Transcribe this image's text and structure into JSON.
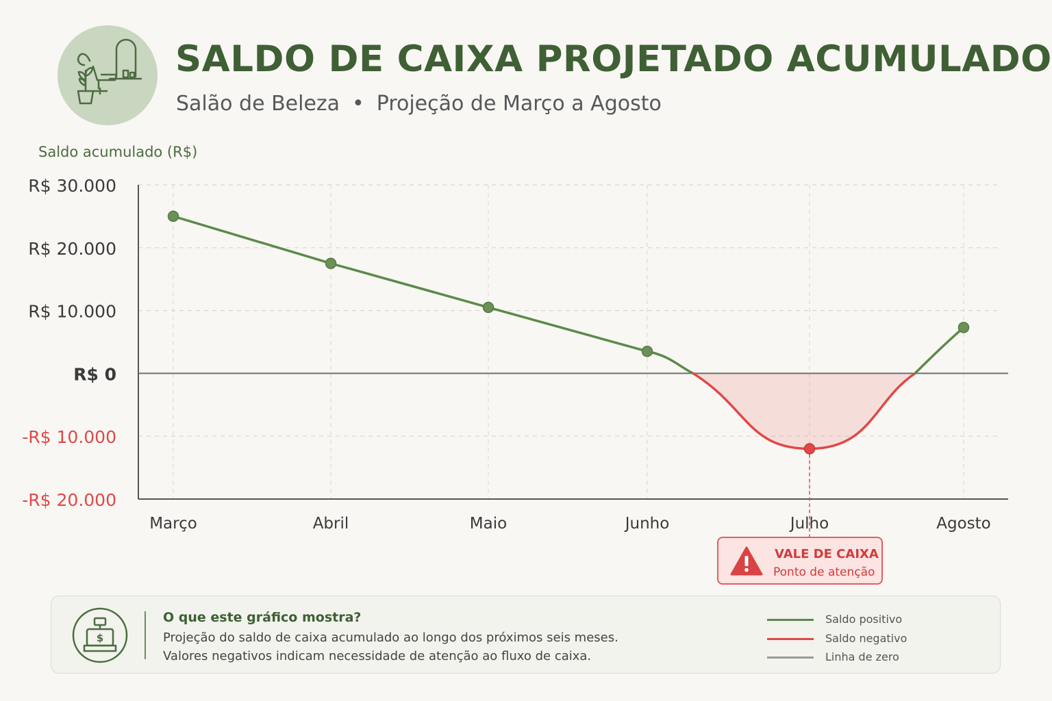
{
  "header": {
    "title": "SALDO DE CAIXA PROJETADO ACUMULADO",
    "subtitle_part1": "Salão de Beleza",
    "subtitle_separator": "•",
    "subtitle_part2": "Projeção de Março a Agosto",
    "logo_icon": "salon-chair-mirror-plant-icon"
  },
  "colors": {
    "positive": "#5b8a4a",
    "negative": "#e04848",
    "zero_line": "#6f6f6f",
    "title": "#3f5f35"
  },
  "chart_data": {
    "type": "line",
    "ylabel": "Saldo acumulado (R$)",
    "categories": [
      "Março",
      "Abril",
      "Maio",
      "Junho",
      "Julho",
      "Agosto"
    ],
    "series": [
      {
        "values": [
          25000,
          17500,
          10500,
          3500,
          -12000,
          7300
        ]
      }
    ],
    "ylim": [
      -20000,
      30000
    ],
    "yticks": [
      {
        "value": 30000,
        "label": "R$ 30.000"
      },
      {
        "value": 20000,
        "label": "R$ 20.000"
      },
      {
        "value": 10000,
        "label": "R$ 10.000"
      },
      {
        "value": 0,
        "label": "R$ 0"
      },
      {
        "value": -10000,
        "label": "-R$ 10.000"
      },
      {
        "value": -20000,
        "label": "-R$ 20.000"
      }
    ],
    "grid": true,
    "negative_area_shaded": true
  },
  "alert": {
    "icon": "warning-triangle-icon",
    "title": "VALE DE CAIXA",
    "subtitle": "Ponto de atenção"
  },
  "info": {
    "icon": "cash-register-icon",
    "heading": "O que este gráfico mostra?",
    "line1": "Projeção do saldo de caixa acumulado ao longo dos próximos seis meses.",
    "line2": "Valores negativos indicam necessidade de atenção ao fluxo de caixa."
  },
  "legend": [
    {
      "label": "Saldo positivo",
      "color": "#5b8a4a"
    },
    {
      "label": "Saldo negativo",
      "color": "#e04848"
    },
    {
      "label": "Linha de zero",
      "color": "#9a9a9a"
    }
  ]
}
